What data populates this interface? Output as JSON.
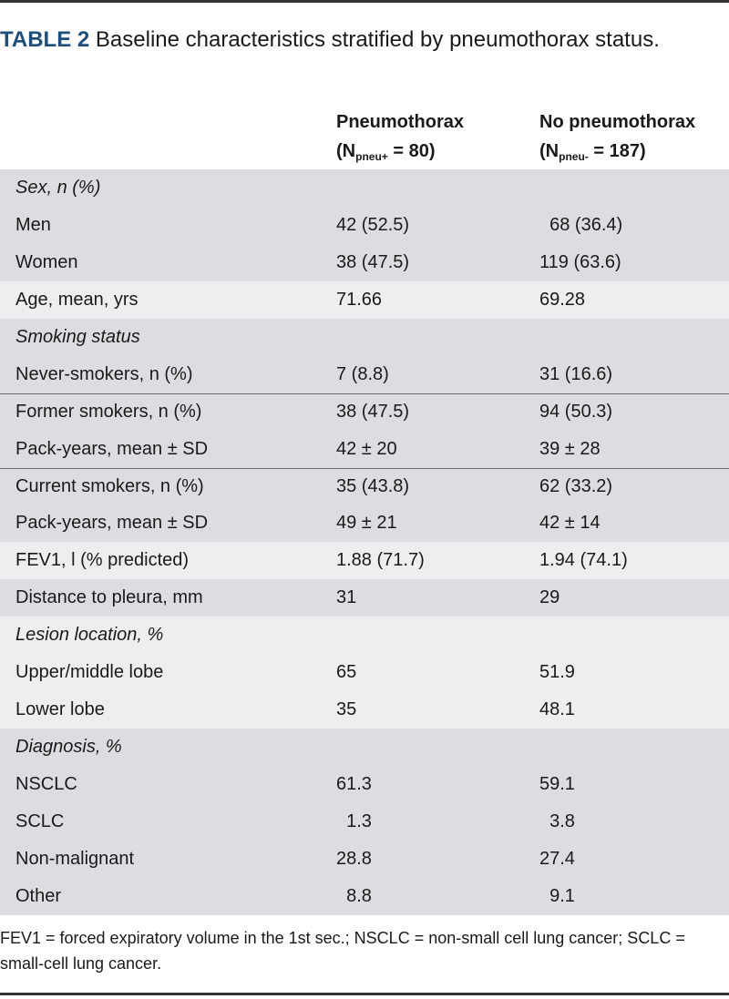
{
  "title": {
    "label": "TABLE 2",
    "text": " Baseline characteristics stratified by pneumothorax status."
  },
  "columns": {
    "col2": {
      "line1": "Pneumothorax",
      "n_prefix": "(N",
      "n_sub": "pneu+",
      "n_suffix": " = 80)"
    },
    "col3": {
      "line1": "No pneumothorax",
      "n_prefix": "(N",
      "n_sub": "pneu-",
      "n_suffix": " = 187)"
    }
  },
  "rows": [
    {
      "label": "Sex, n (%)",
      "c2": "",
      "c3": ""
    },
    {
      "label": "Men",
      "c2": "42 (52.5)",
      "c3": "  68 (36.4)"
    },
    {
      "label": "Women",
      "c2": "38 (47.5)",
      "c3": "119 (63.6)"
    },
    {
      "label": "Age, mean, yrs",
      "c2": "71.66",
      "c3": "69.28"
    },
    {
      "label": "Smoking status",
      "c2": "",
      "c3": ""
    },
    {
      "label": "Never-smokers, n (%)",
      "c2": "7 (8.8)",
      "c3": "31 (16.6)"
    },
    {
      "label": "Former smokers, n (%)",
      "c2": "38 (47.5)",
      "c3": "94 (50.3)"
    },
    {
      "label": "Pack-years, mean ± SD",
      "c2": "42 ± 20",
      "c3": "39 ± 28"
    },
    {
      "label": "Current smokers, n (%)",
      "c2": "35 (43.8)",
      "c3": "62 (33.2)"
    },
    {
      "label": "Pack-years, mean ± SD",
      "c2": "49 ± 21",
      "c3": "42 ± 14"
    },
    {
      "label": "FEV1, l (% predicted)",
      "c2": "1.88 (71.7)",
      "c3": "1.94 (74.1)"
    },
    {
      "label": "Distance to pleura, mm",
      "c2": "31",
      "c3": "29"
    },
    {
      "label": "Lesion location, %",
      "c2": "",
      "c3": ""
    },
    {
      "label": "Upper/middle lobe",
      "c2": "65",
      "c3": "51.9"
    },
    {
      "label": "Lower lobe",
      "c2": "35",
      "c3": "48.1"
    },
    {
      "label": "Diagnosis, %",
      "c2": "",
      "c3": ""
    },
    {
      "label": "NSCLC",
      "c2": "61.3",
      "c3": "59.1"
    },
    {
      "label": "SCLC",
      "c2": "  1.3",
      "c3": "  3.8"
    },
    {
      "label": "Non-malignant",
      "c2": "28.8",
      "c3": "27.4"
    },
    {
      "label": "Other",
      "c2": "  8.8",
      "c3": "  9.1"
    }
  ],
  "footnote": "FEV1 = forced expiratory volume in the 1st sec.; NSCLC = non-small cell lung cancer; SCLC = small-cell lung cancer.",
  "colors": {
    "label": "#1f4e79",
    "shade": "#dcdde0",
    "light": "#eeeef0"
  }
}
